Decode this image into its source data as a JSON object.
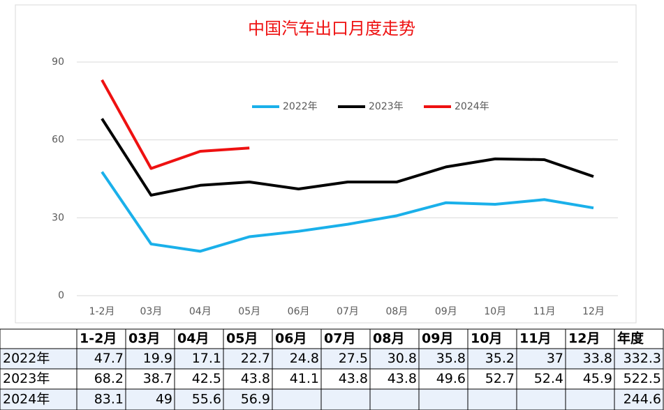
{
  "chart_data": {
    "type": "line",
    "title": "中国汽车出口月度走势",
    "categories": [
      "1-2月",
      "03月",
      "04月",
      "05月",
      "06月",
      "07月",
      "08月",
      "09月",
      "10月",
      "11月",
      "12月"
    ],
    "series": [
      {
        "name": "2022年",
        "color": "#1ab0ea",
        "values": [
          47.7,
          19.9,
          17.1,
          22.7,
          24.8,
          27.5,
          30.8,
          35.8,
          35.2,
          37,
          33.8
        ]
      },
      {
        "name": "2023年",
        "color": "#000000",
        "values": [
          68.2,
          38.7,
          42.5,
          43.8,
          41.1,
          43.8,
          43.8,
          49.6,
          52.7,
          52.4,
          45.9
        ]
      },
      {
        "name": "2024年",
        "color": "#ee1111",
        "values": [
          83.1,
          49,
          55.6,
          56.9,
          null,
          null,
          null,
          null,
          null,
          null,
          null
        ]
      }
    ],
    "ylim": [
      0,
      90
    ],
    "yticks": [
      0,
      30,
      60,
      90
    ],
    "grid": true,
    "legend": "top"
  },
  "table": {
    "total_header": "年度",
    "totals": [
      332.3,
      522.5,
      244.6
    ]
  }
}
